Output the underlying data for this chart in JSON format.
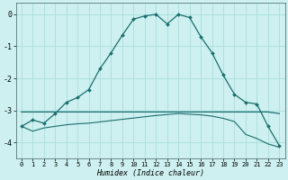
{
  "xlabel": "Humidex (Indice chaleur)",
  "background_color": "#cef0f0",
  "grid_color": "#a8dede",
  "line_color": "#1a6e6e",
  "xlim": [
    -0.5,
    23.5
  ],
  "ylim": [
    -4.5,
    0.35
  ],
  "yticks": [
    0,
    -1,
    -2,
    -3,
    -4
  ],
  "xticks": [
    0,
    1,
    2,
    3,
    4,
    5,
    6,
    7,
    8,
    9,
    10,
    11,
    12,
    13,
    14,
    15,
    16,
    17,
    18,
    19,
    20,
    21,
    22,
    23
  ],
  "humidex_curve": [
    -3.5,
    -3.3,
    -3.4,
    -3.1,
    -2.75,
    -2.6,
    -2.35,
    -1.7,
    -1.2,
    -0.65,
    -0.15,
    -0.05,
    0.0,
    -0.3,
    0.0,
    -0.1,
    -0.7,
    -1.2,
    -1.9,
    -2.5,
    -2.75,
    -2.8,
    -3.5,
    -4.1
  ],
  "flat_line": [
    -3.05,
    -3.05,
    -3.05,
    -3.05,
    -3.05,
    -3.05,
    -3.05,
    -3.05,
    -3.05,
    -3.05,
    -3.05,
    -3.05,
    -3.05,
    -3.05,
    -3.05,
    -3.05,
    -3.05,
    -3.05,
    -3.05,
    -3.05,
    -3.05,
    -3.05,
    -3.05,
    -3.1
  ],
  "lower_curve": [
    -3.5,
    -3.65,
    -3.55,
    -3.5,
    -3.45,
    -3.42,
    -3.4,
    -3.36,
    -3.32,
    -3.28,
    -3.24,
    -3.2,
    -3.16,
    -3.13,
    -3.1,
    -3.12,
    -3.14,
    -3.18,
    -3.25,
    -3.35,
    -3.75,
    -3.88,
    -4.05,
    -4.15
  ]
}
